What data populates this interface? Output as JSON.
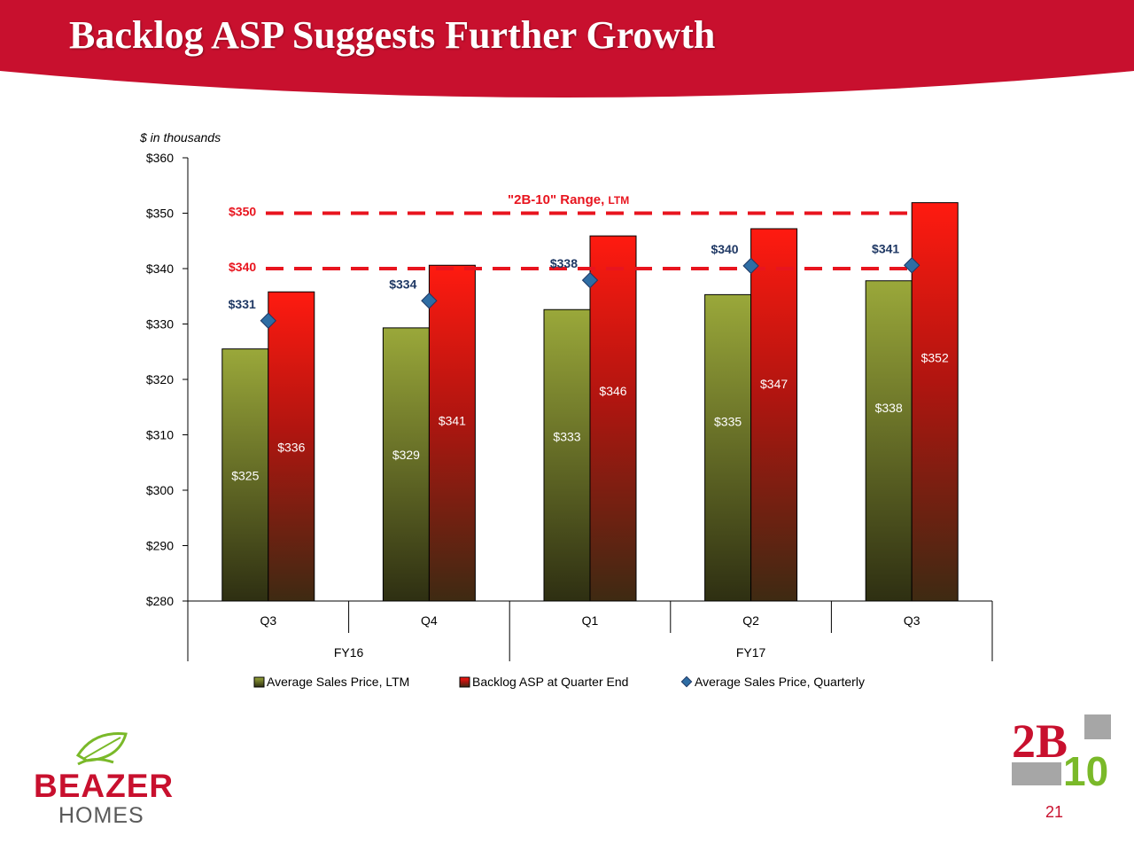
{
  "slide": {
    "title": "Backlog ASP Suggests Further Growth",
    "page_number": "21",
    "brand_name": "BEAZER",
    "brand_sub": "HOMES",
    "logo_text_top": "2B",
    "logo_text_bottom": "10",
    "colors": {
      "header": "#c8102e",
      "brand_red": "#c8102e",
      "logo_green": "#7ab929",
      "logo_gray": "#a6a6a6"
    }
  },
  "chart_data": {
    "type": "bar",
    "unit_note": "$ in thousands",
    "categories": [
      "Q3",
      "Q4",
      "Q1",
      "Q2",
      "Q3"
    ],
    "groups": [
      {
        "label": "FY16",
        "categories": [
          "Q3",
          "Q4"
        ]
      },
      {
        "label": "FY17",
        "categories": [
          "Q1",
          "Q2",
          "Q3"
        ]
      }
    ],
    "ylim": [
      280,
      360
    ],
    "yticks": [
      280,
      290,
      300,
      310,
      320,
      330,
      340,
      350,
      360
    ],
    "ytick_labels": [
      "$280",
      "$290",
      "$300",
      "$310",
      "$320",
      "$330",
      "$340",
      "$350",
      "$360"
    ],
    "series": [
      {
        "name": "Average Sales Price, LTM",
        "type": "bar",
        "color": "#8a9a2a",
        "values": [
          325.5,
          329.3,
          332.6,
          335.3,
          337.8
        ],
        "labels": [
          "$325",
          "$329",
          "$333",
          "$335",
          "$338"
        ]
      },
      {
        "name": "Backlog ASP at Quarter End",
        "type": "bar",
        "color": "#e8141e",
        "values": [
          335.8,
          340.6,
          345.9,
          347.2,
          351.9
        ],
        "labels": [
          "$336",
          "$341",
          "$346",
          "$347",
          "$352"
        ]
      },
      {
        "name": "Average Sales Price, Quarterly",
        "type": "marker",
        "color": "#2e6da4",
        "values": [
          330.6,
          334.2,
          337.9,
          340.5,
          340.6
        ],
        "labels": [
          "$331",
          "$334",
          "$338",
          "$340",
          "$341"
        ]
      }
    ],
    "reference_lines": [
      {
        "value": 350,
        "label": "$350"
      },
      {
        "value": 340,
        "label": "$340"
      }
    ],
    "annotation": {
      "text": "\"2B-10\" Range, ",
      "suffix": "LTM"
    },
    "legend_position": "bottom",
    "grid": false
  }
}
